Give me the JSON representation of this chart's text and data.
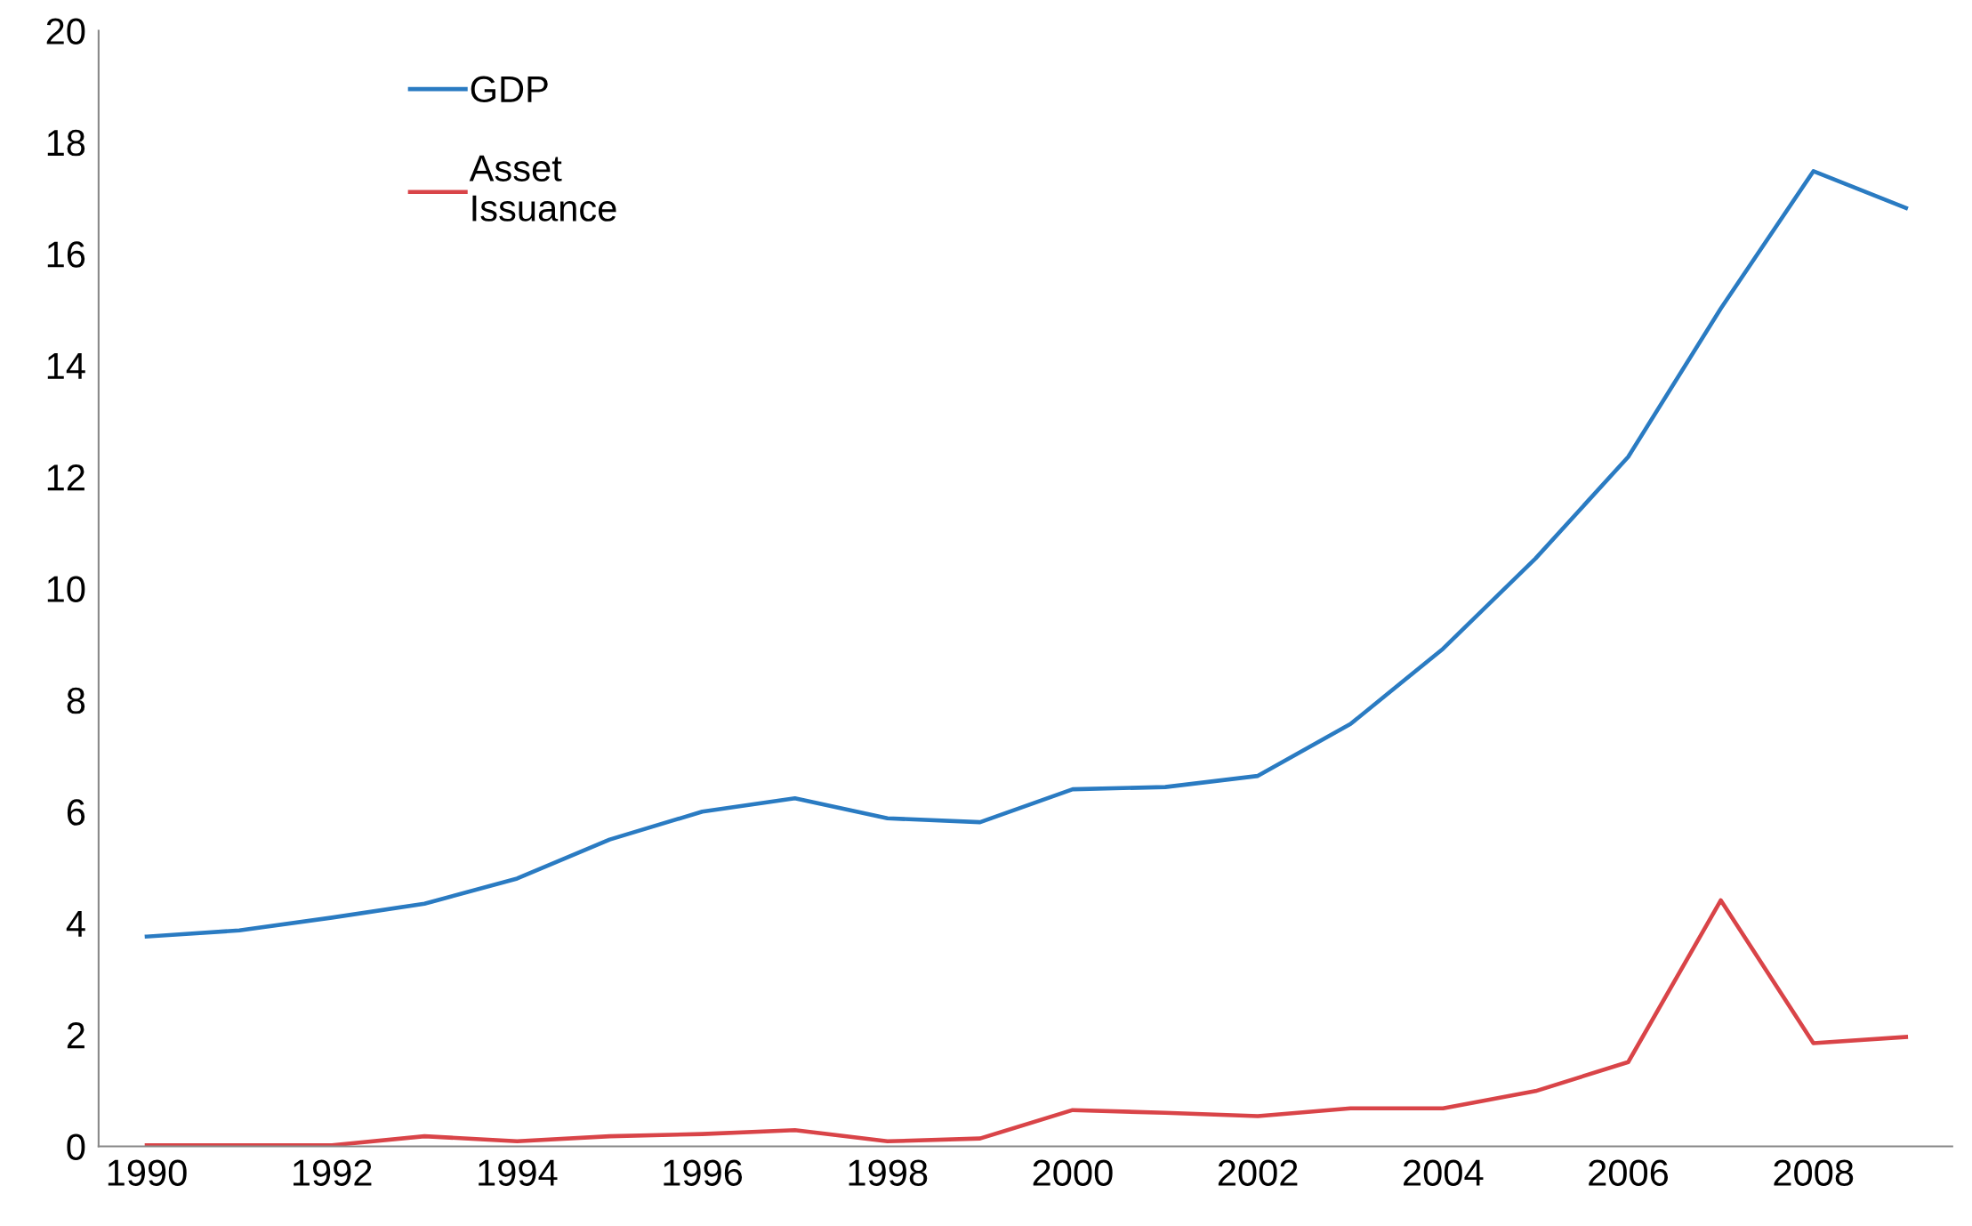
{
  "chart_data": {
    "type": "line",
    "x": [
      1990,
      1991,
      1992,
      1993,
      1994,
      1995,
      1996,
      1997,
      1998,
      1999,
      2000,
      2001,
      2002,
      2003,
      2004,
      2005,
      2006,
      2007,
      2008,
      2009
    ],
    "series": [
      {
        "name": "GDP",
        "color": "#2a7bc2",
        "values": [
          3.76,
          3.87,
          4.1,
          4.35,
          4.8,
          5.5,
          6.0,
          6.24,
          5.88,
          5.81,
          6.4,
          6.44,
          6.64,
          7.57,
          8.92,
          10.54,
          12.36,
          15.02,
          17.48,
          16.82
        ]
      },
      {
        "name": "Asset\nIssuance",
        "color": "#d94448",
        "values": [
          0.02,
          0.02,
          0.02,
          0.18,
          0.09,
          0.18,
          0.22,
          0.29,
          0.09,
          0.14,
          0.65,
          0.6,
          0.54,
          0.68,
          0.68,
          0.99,
          1.51,
          4.41,
          1.85,
          1.96
        ]
      }
    ],
    "xlim": [
      1989.48,
      2009.5
    ],
    "xticks": [
      1990,
      1992,
      1994,
      1996,
      1998,
      2000,
      2002,
      2004,
      2006,
      2008
    ],
    "ylim": [
      0,
      20
    ],
    "yticks": [
      0,
      2,
      4,
      6,
      8,
      10,
      12,
      14,
      16,
      18,
      20
    ],
    "grid": false,
    "legend": "top left",
    "marker": "none",
    "line_style": "solid"
  }
}
